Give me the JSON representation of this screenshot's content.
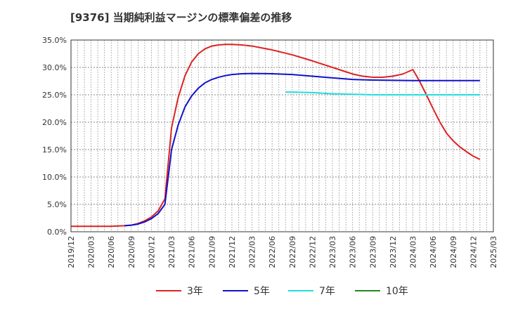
{
  "title": "[9376]  当期純利益マージンの標準偏差の推移",
  "chart_data": {
    "type": "line",
    "title": "[9376]  当期純利益マージンの標準偏差の推移",
    "xlabel": "",
    "ylabel": "",
    "ylim": [
      0,
      35
    ],
    "grid": true,
    "x_ticks": [
      "2019/12",
      "2020/03",
      "2020/06",
      "2020/09",
      "2020/12",
      "2021/03",
      "2021/06",
      "2021/09",
      "2021/12",
      "2022/03",
      "2022/06",
      "2022/09",
      "2022/12",
      "2023/03",
      "2023/06",
      "2023/09",
      "2023/12",
      "2024/03",
      "2024/06",
      "2024/09",
      "2024/12",
      "2025/03"
    ],
    "y_ticks": [
      "0.0%",
      "5.0%",
      "10.0%",
      "15.0%",
      "20.0%",
      "25.0%",
      "30.0%",
      "35.0%"
    ],
    "y_tick_values": [
      0,
      5,
      10,
      15,
      20,
      25,
      30,
      35
    ],
    "legend_position": "bottom",
    "series": [
      {
        "name": "3年",
        "color": "#dd2222",
        "points": [
          [
            0,
            1.0
          ],
          [
            1,
            1.0
          ],
          [
            2,
            1.0
          ],
          [
            2.67,
            1.1
          ],
          [
            3,
            1.2
          ],
          [
            3.33,
            1.5
          ],
          [
            3.67,
            2.0
          ],
          [
            4,
            2.7
          ],
          [
            4.33,
            3.8
          ],
          [
            4.67,
            6.0
          ],
          [
            5,
            19.0
          ],
          [
            5.33,
            24.5
          ],
          [
            5.67,
            28.5
          ],
          [
            6,
            31.0
          ],
          [
            6.33,
            32.5
          ],
          [
            6.67,
            33.4
          ],
          [
            7,
            33.9
          ],
          [
            7.33,
            34.1
          ],
          [
            7.67,
            34.2
          ],
          [
            8,
            34.2
          ],
          [
            8.5,
            34.1
          ],
          [
            9,
            33.9
          ],
          [
            10,
            33.2
          ],
          [
            11,
            32.3
          ],
          [
            12,
            31.2
          ],
          [
            13,
            30.0
          ],
          [
            13.67,
            29.2
          ],
          [
            14,
            28.8
          ],
          [
            14.5,
            28.4
          ],
          [
            15,
            28.2
          ],
          [
            15.5,
            28.2
          ],
          [
            16,
            28.4
          ],
          [
            16.5,
            28.8
          ],
          [
            17,
            29.6
          ],
          [
            17.33,
            27.5
          ],
          [
            17.67,
            25.0
          ],
          [
            18,
            22.5
          ],
          [
            18.33,
            20.1
          ],
          [
            18.67,
            18.0
          ],
          [
            19,
            16.6
          ],
          [
            19.33,
            15.5
          ],
          [
            19.67,
            14.6
          ],
          [
            20,
            13.8
          ],
          [
            20.33,
            13.2
          ]
        ]
      },
      {
        "name": "5年",
        "color": "#1111cc",
        "points": [
          [
            2.67,
            1.1
          ],
          [
            3,
            1.2
          ],
          [
            3.33,
            1.4
          ],
          [
            3.67,
            1.8
          ],
          [
            4,
            2.4
          ],
          [
            4.33,
            3.3
          ],
          [
            4.67,
            5.0
          ],
          [
            5,
            15.0
          ],
          [
            5.33,
            19.5
          ],
          [
            5.67,
            22.8
          ],
          [
            6,
            24.8
          ],
          [
            6.33,
            26.2
          ],
          [
            6.67,
            27.2
          ],
          [
            7,
            27.8
          ],
          [
            7.33,
            28.2
          ],
          [
            7.67,
            28.5
          ],
          [
            8,
            28.7
          ],
          [
            8.5,
            28.85
          ],
          [
            9,
            28.9
          ],
          [
            10,
            28.85
          ],
          [
            11,
            28.7
          ],
          [
            12,
            28.4
          ],
          [
            13,
            28.1
          ],
          [
            13.67,
            27.9
          ],
          [
            14,
            27.8
          ],
          [
            15,
            27.7
          ],
          [
            16,
            27.65
          ],
          [
            17,
            27.6
          ],
          [
            18,
            27.6
          ],
          [
            19,
            27.6
          ],
          [
            20,
            27.6
          ],
          [
            20.33,
            27.6
          ]
        ]
      },
      {
        "name": "7年",
        "color": "#22dddd",
        "points": [
          [
            10.67,
            25.5
          ],
          [
            11,
            25.5
          ],
          [
            12,
            25.4
          ],
          [
            13,
            25.2
          ],
          [
            14,
            25.1
          ],
          [
            15,
            25.0
          ],
          [
            16,
            25.0
          ],
          [
            17,
            25.0
          ],
          [
            18,
            25.0
          ],
          [
            19,
            25.0
          ],
          [
            20,
            25.0
          ],
          [
            20.33,
            25.0
          ]
        ]
      },
      {
        "name": "10年",
        "color": "#228822",
        "points": []
      }
    ]
  }
}
